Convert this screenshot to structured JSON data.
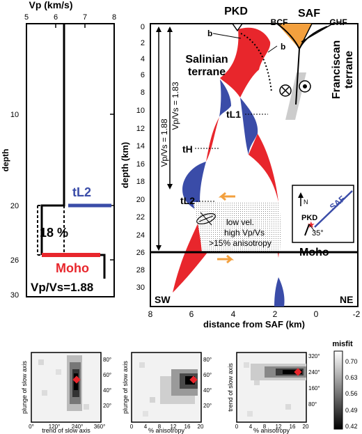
{
  "colors": {
    "red": "#e8262c",
    "blue": "#3a4ca8",
    "orange": "#f3a03e",
    "black": "#000000",
    "gray": "#cccccc"
  },
  "left_panel": {
    "title": "Vp (km/s)",
    "x_ticks": [
      "5",
      "6",
      "7",
      "8"
    ],
    "ylabel": "depth",
    "y_ticks": [
      "10",
      "20",
      "26",
      "30"
    ],
    "tl2_label": "tL2",
    "percent_label": "18 %",
    "moho_label": "Moho",
    "vpvs_label": "Vp/Vs=1.88"
  },
  "main_panel": {
    "pkd_label": "PKD",
    "saf_label": "SAF",
    "bcf_label": "BCF",
    "ghf_label": "GHF",
    "b_label_1": "b",
    "b_label_2": "b",
    "salinian_line1": "Salinian",
    "salinian_line2": "terrane",
    "franciscan_line1": "Franciscan",
    "franciscan_line2": "terrane",
    "vpvs_188": "Vp/Vs = 1.88",
    "vpvs_183": "Vp/Vs = 1.83",
    "tl1_label": "tL1",
    "th_label": "tH",
    "tl2_label": "tL2",
    "anis_line1": "low vel.",
    "anis_line2": "high Vp/Vs",
    "anis_line3": ">15% anisotropy",
    "moho_label": "Moho",
    "sw_label": "SW",
    "ne_label": "NE",
    "ylabel": "depth (km)",
    "xlabel": "distance from SAF (km)",
    "y_ticks": [
      "0",
      "2",
      "4",
      "6",
      "8",
      "10",
      "12",
      "14",
      "16",
      "18",
      "20",
      "22",
      "24",
      "26",
      "28",
      "30"
    ],
    "x_ticks": [
      "8",
      "6",
      "4",
      "2",
      "0",
      "-2"
    ],
    "inset": {
      "north_label": "N",
      "saf_label": "SAF",
      "pkd_label": "PKD",
      "angle_label": "35°"
    }
  },
  "bottom_panels": [
    {
      "ylabel": "plunge of slow axis",
      "xlabel": "trend of slow axis",
      "x_ticks": [
        "0°",
        "120°",
        "240°",
        "360°"
      ],
      "y_ticks": [
        "80°",
        "60°",
        "40°",
        "20°"
      ]
    },
    {
      "ylabel": "plunge of slow axis",
      "xlabel": "% anisotropy",
      "x_ticks": [
        "0",
        "4",
        "8",
        "12",
        "16",
        "20"
      ],
      "y_ticks": [
        "80°",
        "60°",
        "40°",
        "20°"
      ]
    },
    {
      "ylabel": "trend of slow axis",
      "xlabel": "% anisotropy",
      "x_ticks": [
        "0",
        "4",
        "8",
        "12",
        "16",
        "20"
      ],
      "y_ticks": [
        "320°",
        "240°",
        "160°",
        "80°"
      ]
    }
  ],
  "colorbar": {
    "title": "misfit",
    "ticks": [
      "0.70",
      "0.63",
      "0.56",
      "0.49",
      "0.42"
    ]
  }
}
